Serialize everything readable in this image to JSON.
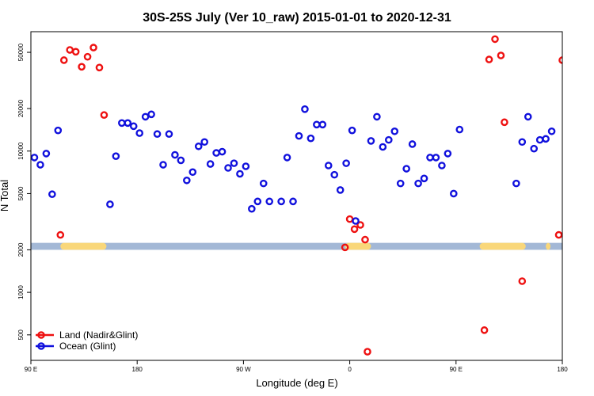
{
  "chart_data": {
    "type": "scatter",
    "title": "30S-25S July (Ver 10_raw)   2015-01-01 to 2020-12-31",
    "xlabel": "Longitude (deg E)",
    "ylabel": "N Total",
    "x_tick_labels": [
      "90 E",
      "180",
      "90 W",
      "0",
      "90 E",
      "180"
    ],
    "x_tick_values": [
      90,
      180,
      270,
      360,
      450,
      540
    ],
    "xlim": [
      90,
      540
    ],
    "y_scale": "log",
    "y_tick_labels": [
      "500",
      "1000",
      "2000",
      "5000",
      "10000",
      "20000",
      "50000"
    ],
    "y_tick_values": [
      500,
      1000,
      2000,
      5000,
      10000,
      20000,
      50000
    ],
    "ylim": [
      330,
      70000
    ],
    "grid": false,
    "legend_position": "bottom-left",
    "colors": {
      "land": "#ee1111",
      "ocean": "#1111dd",
      "band": "#a3b8d6",
      "land_segment": "#f9d77a"
    },
    "band": {
      "y_range": [
        2000,
        2240
      ],
      "land_segments": [
        [
          115,
          154
        ],
        [
          356,
          378
        ],
        [
          470,
          509
        ],
        [
          526,
          530
        ]
      ]
    },
    "series": [
      {
        "name": "Land (Nadir&Glint)",
        "color": "#ee1111",
        "points": [
          {
            "x": 115,
            "y": 2550
          },
          {
            "x": 118,
            "y": 44000
          },
          {
            "x": 123,
            "y": 52000
          },
          {
            "x": 128,
            "y": 50500
          },
          {
            "x": 133,
            "y": 39500
          },
          {
            "x": 138,
            "y": 46500
          },
          {
            "x": 143,
            "y": 54000
          },
          {
            "x": 148,
            "y": 39000
          },
          {
            "x": 152,
            "y": 18000
          },
          {
            "x": 356,
            "y": 2080
          },
          {
            "x": 360,
            "y": 3300
          },
          {
            "x": 364,
            "y": 2800
          },
          {
            "x": 369,
            "y": 3000
          },
          {
            "x": 373,
            "y": 2360
          },
          {
            "x": 375,
            "y": 380
          },
          {
            "x": 474,
            "y": 540
          },
          {
            "x": 478,
            "y": 44500
          },
          {
            "x": 483,
            "y": 62000
          },
          {
            "x": 488,
            "y": 47500
          },
          {
            "x": 491,
            "y": 16000
          },
          {
            "x": 506,
            "y": 1200
          },
          {
            "x": 537,
            "y": 2550
          },
          {
            "x": 540,
            "y": 44000
          }
        ]
      },
      {
        "name": "Ocean (Glint)",
        "color": "#1111dd",
        "points": [
          {
            "x": 93,
            "y": 9000
          },
          {
            "x": 98,
            "y": 8000
          },
          {
            "x": 103,
            "y": 9600
          },
          {
            "x": 108,
            "y": 4950
          },
          {
            "x": 113,
            "y": 14000
          },
          {
            "x": 157,
            "y": 4200
          },
          {
            "x": 162,
            "y": 9200
          },
          {
            "x": 167,
            "y": 15800
          },
          {
            "x": 172,
            "y": 15800
          },
          {
            "x": 177,
            "y": 15000
          },
          {
            "x": 182,
            "y": 13400
          },
          {
            "x": 187,
            "y": 17500
          },
          {
            "x": 192,
            "y": 18200
          },
          {
            "x": 197,
            "y": 13200
          },
          {
            "x": 202,
            "y": 8000
          },
          {
            "x": 207,
            "y": 13200
          },
          {
            "x": 212,
            "y": 9400
          },
          {
            "x": 217,
            "y": 8600
          },
          {
            "x": 222,
            "y": 6200
          },
          {
            "x": 227,
            "y": 7100
          },
          {
            "x": 232,
            "y": 10800
          },
          {
            "x": 237,
            "y": 11600
          },
          {
            "x": 242,
            "y": 8100
          },
          {
            "x": 247,
            "y": 9700
          },
          {
            "x": 252,
            "y": 9900
          },
          {
            "x": 257,
            "y": 7600
          },
          {
            "x": 262,
            "y": 8200
          },
          {
            "x": 267,
            "y": 6900
          },
          {
            "x": 272,
            "y": 7800
          },
          {
            "x": 277,
            "y": 3900
          },
          {
            "x": 282,
            "y": 4400
          },
          {
            "x": 287,
            "y": 5900
          },
          {
            "x": 292,
            "y": 4400
          },
          {
            "x": 302,
            "y": 4400
          },
          {
            "x": 307,
            "y": 9000
          },
          {
            "x": 312,
            "y": 4400
          },
          {
            "x": 317,
            "y": 12800
          },
          {
            "x": 322,
            "y": 19800
          },
          {
            "x": 327,
            "y": 12300
          },
          {
            "x": 332,
            "y": 15400
          },
          {
            "x": 337,
            "y": 15400
          },
          {
            "x": 342,
            "y": 7900
          },
          {
            "x": 347,
            "y": 6800
          },
          {
            "x": 352,
            "y": 5300
          },
          {
            "x": 357,
            "y": 8200
          },
          {
            "x": 362,
            "y": 14000
          },
          {
            "x": 365,
            "y": 3200
          },
          {
            "x": 378,
            "y": 11800
          },
          {
            "x": 383,
            "y": 17500
          },
          {
            "x": 388,
            "y": 10700
          },
          {
            "x": 393,
            "y": 12000
          },
          {
            "x": 398,
            "y": 13800
          },
          {
            "x": 403,
            "y": 5900
          },
          {
            "x": 408,
            "y": 7500
          },
          {
            "x": 413,
            "y": 11200
          },
          {
            "x": 418,
            "y": 5900
          },
          {
            "x": 423,
            "y": 6400
          },
          {
            "x": 428,
            "y": 9000
          },
          {
            "x": 433,
            "y": 9000
          },
          {
            "x": 438,
            "y": 7900
          },
          {
            "x": 443,
            "y": 9600
          },
          {
            "x": 448,
            "y": 5000
          },
          {
            "x": 453,
            "y": 14200
          },
          {
            "x": 501,
            "y": 5900
          },
          {
            "x": 506,
            "y": 11600
          },
          {
            "x": 511,
            "y": 17500
          },
          {
            "x": 516,
            "y": 10400
          },
          {
            "x": 521,
            "y": 12000
          },
          {
            "x": 526,
            "y": 12200
          },
          {
            "x": 531,
            "y": 13800
          }
        ]
      }
    ]
  }
}
